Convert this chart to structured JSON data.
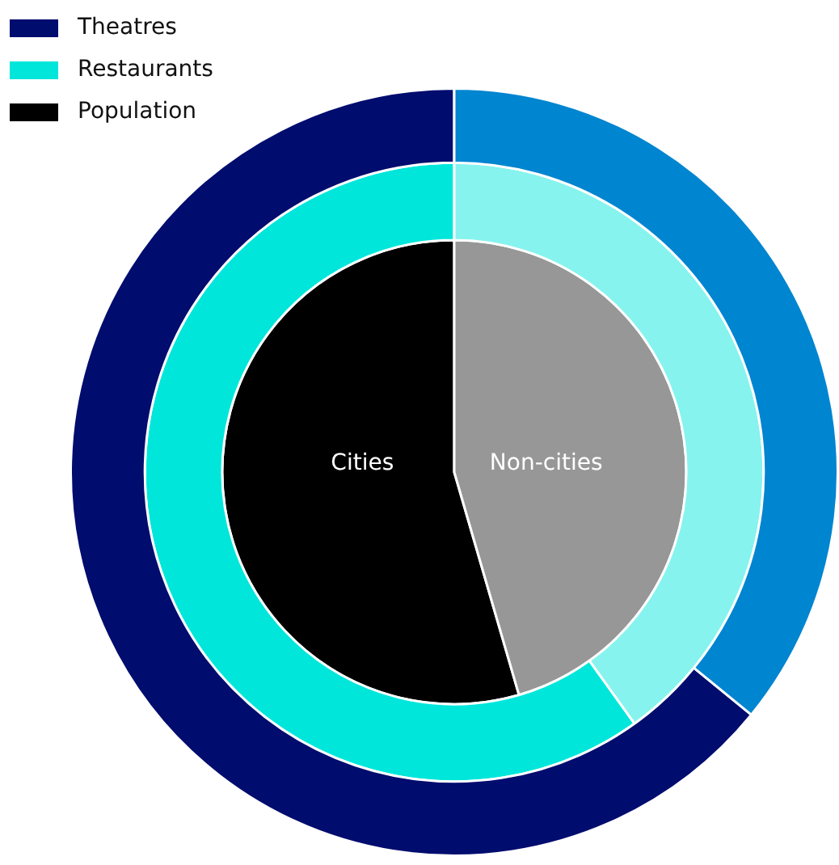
{
  "chart_data": {
    "type": "donut",
    "categories": [
      "Cities",
      "Non-cities"
    ],
    "legend": "top left",
    "series": [
      {
        "name": "Theatres",
        "colors": [
          "#000c6e",
          "#0085d0"
        ],
        "values": [
          64.1,
          35.9
        ]
      },
      {
        "name": "Restaurants",
        "colors": [
          "#00e6da",
          "#86f3ee"
        ],
        "values": [
          59.9,
          40.1
        ]
      },
      {
        "name": "Population",
        "colors": [
          "#000000",
          "#979797"
        ],
        "values": [
          54.5,
          45.5
        ]
      }
    ]
  }
}
